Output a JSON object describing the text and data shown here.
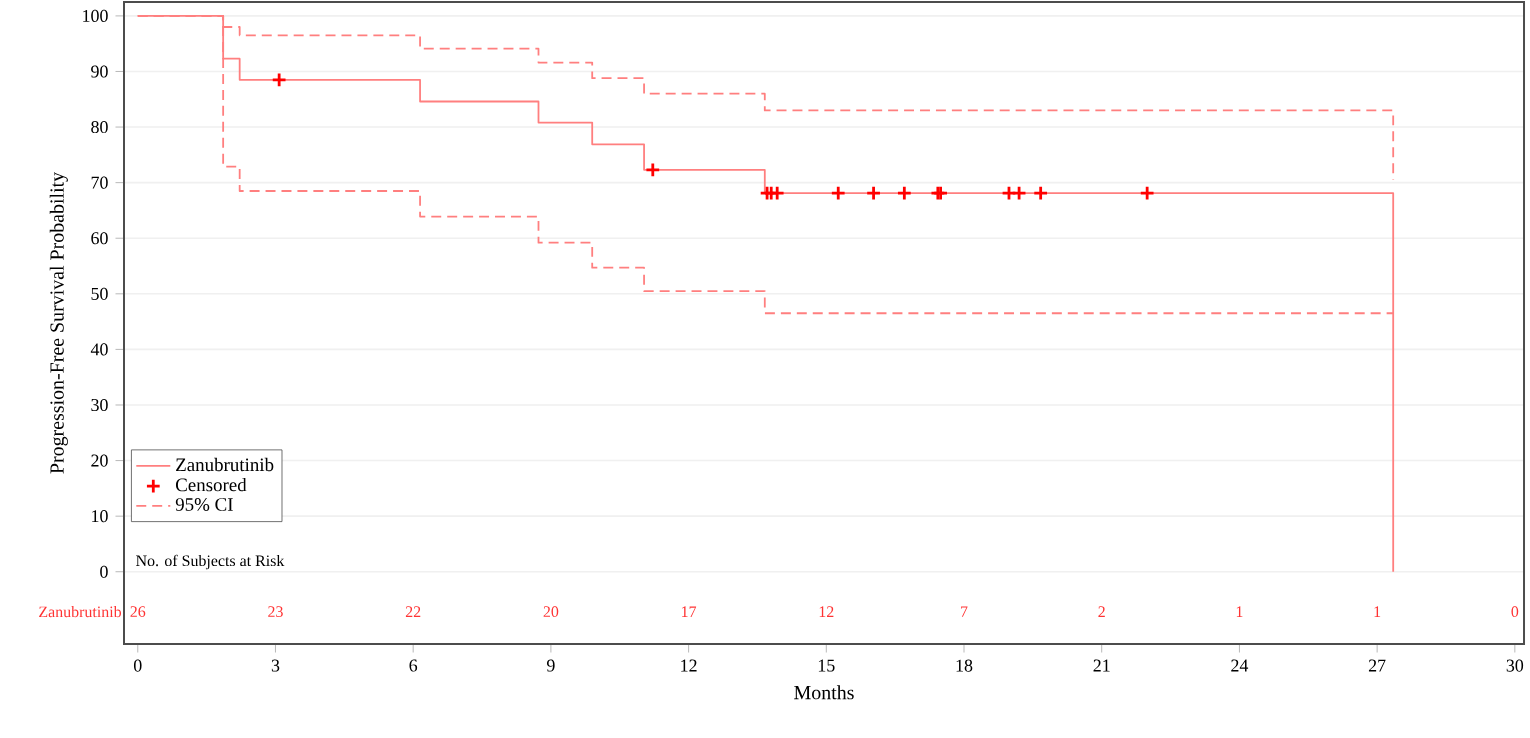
{
  "chart_data": {
    "type": "step",
    "xlabel": "Months",
    "ylabel": "Progression-Free Survival Probability",
    "xlim": [
      -0.3,
      30.2
    ],
    "ylim": [
      -13,
      102.5
    ],
    "xticks": [
      0,
      3,
      6,
      9,
      12,
      15,
      18,
      21,
      24,
      27,
      30
    ],
    "yticks": [
      0,
      10,
      20,
      30,
      40,
      50,
      60,
      70,
      80,
      90,
      100
    ],
    "grid": "y",
    "legend": "bottom left",
    "series": [
      {
        "name": "Zanubrutinib",
        "color": "#ff7f7f",
        "line_style": "solid",
        "x": [
          0,
          1.86,
          2.22,
          6.15,
          8.73,
          9.9,
          11.03,
          13.66,
          27.35,
          27.35
        ],
        "values": [
          100,
          92.3,
          88.5,
          84.6,
          80.8,
          76.9,
          72.3,
          68.1,
          68.1,
          0
        ]
      },
      {
        "name": "Censored",
        "type": "scatter",
        "color": "#ff0000",
        "marker": "cross",
        "x": [
          3.08,
          11.22,
          13.71,
          13.8,
          13.93,
          15.26,
          16.03,
          16.7,
          17.43,
          17.49,
          18.98,
          19.2,
          19.67,
          21.99
        ],
        "values": [
          88.5,
          72.3,
          68.1,
          68.1,
          68.1,
          68.1,
          68.1,
          68.1,
          68.1,
          68.1,
          68.1,
          68.1,
          68.1,
          68.1
        ]
      },
      {
        "name": "95% CI",
        "color": "#ff7f7f",
        "line_style": "dashed",
        "x": [
          0,
          1.86,
          2.22,
          6.15,
          8.73,
          9.9,
          11.03,
          13.66,
          27.35,
          27.35
        ],
        "values": [
          100,
          98,
          96.5,
          94.1,
          91.6,
          88.8,
          86,
          83,
          83,
          70.5
        ]
      },
      {
        "color": "#ff7f7f",
        "line_style": "dashed",
        "x": [
          0,
          1.86,
          2.22,
          6.15,
          8.73,
          9.9,
          11.03,
          13.66,
          27.35
        ],
        "values": [
          100,
          72.9,
          68.5,
          63.9,
          59.2,
          54.7,
          50.5,
          46.5,
          46.5
        ]
      }
    ],
    "annotations": [
      "No. of Subjects at Risk",
      "Zanubrutinib",
      "26",
      "23",
      "22",
      "20",
      "17",
      "12",
      "7",
      "2",
      "1",
      "1",
      "0"
    ]
  }
}
